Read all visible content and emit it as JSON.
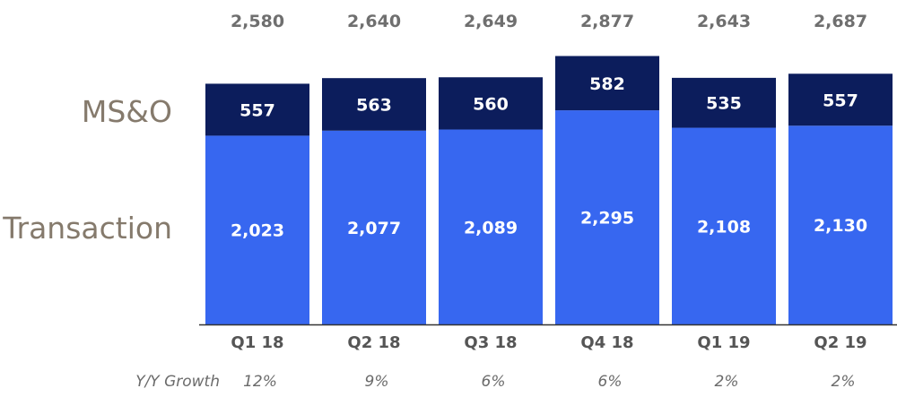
{
  "chart_data": {
    "type": "bar",
    "stacked": true,
    "categories": [
      "Q1 18",
      "Q2 18",
      "Q3 18",
      "Q4 18",
      "Q1 19",
      "Q2 19"
    ],
    "series": [
      {
        "name": "Transaction",
        "values": [
          2023,
          2077,
          2089,
          2295,
          2108,
          2130
        ]
      },
      {
        "name": "MS&O",
        "values": [
          557,
          563,
          560,
          582,
          535,
          557
        ]
      }
    ],
    "totals": [
      2580,
      2640,
      2649,
      2877,
      2643,
      2687
    ],
    "growth": {
      "label": "Y/Y Growth",
      "values": [
        "12%",
        "9%",
        "6%",
        "6%",
        "2%",
        "2%"
      ]
    },
    "colors": {
      "Transaction": "#3767f0",
      "MS&O": "#0c1d5c",
      "baseline": "#333333"
    },
    "title": "",
    "xlabel": "",
    "ylabel": "",
    "grid": false,
    "legend_position": "left"
  }
}
